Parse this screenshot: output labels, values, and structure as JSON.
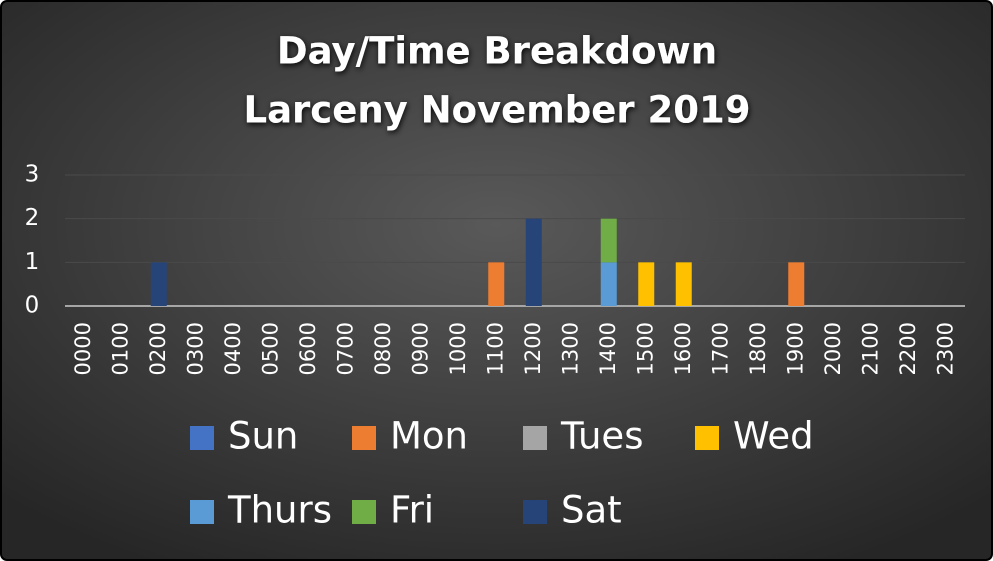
{
  "chart_data": {
    "type": "bar",
    "stacked": true,
    "title": "Day/Time Breakdown",
    "subtitle": "Larceny November 2019",
    "categories": [
      "0000",
      "0100",
      "0200",
      "0300",
      "0400",
      "0500",
      "0600",
      "0700",
      "0800",
      "0900",
      "1000",
      "1100",
      "1200",
      "1300",
      "1400",
      "1500",
      "1600",
      "1700",
      "1800",
      "1900",
      "2000",
      "2100",
      "2200",
      "2300"
    ],
    "series": [
      {
        "name": "Sun",
        "color": "#4472c4",
        "values": [
          0,
          0,
          0,
          0,
          0,
          0,
          0,
          0,
          0,
          0,
          0,
          0,
          0,
          0,
          0,
          0,
          0,
          0,
          0,
          0,
          0,
          0,
          0,
          0
        ]
      },
      {
        "name": "Mon",
        "color": "#ed7d31",
        "values": [
          0,
          0,
          0,
          0,
          0,
          0,
          0,
          0,
          0,
          0,
          0,
          1,
          0,
          0,
          0,
          0,
          0,
          0,
          0,
          1,
          0,
          0,
          0,
          0
        ]
      },
      {
        "name": "Tues",
        "color": "#a5a5a5",
        "values": [
          0,
          0,
          0,
          0,
          0,
          0,
          0,
          0,
          0,
          0,
          0,
          0,
          0,
          0,
          0,
          0,
          0,
          0,
          0,
          0,
          0,
          0,
          0,
          0
        ]
      },
      {
        "name": "Wed",
        "color": "#ffc000",
        "values": [
          0,
          0,
          0,
          0,
          0,
          0,
          0,
          0,
          0,
          0,
          0,
          0,
          0,
          0,
          0,
          1,
          1,
          0,
          0,
          0,
          0,
          0,
          0,
          0
        ]
      },
      {
        "name": "Thurs",
        "color": "#5b9bd5",
        "values": [
          0,
          0,
          0,
          0,
          0,
          0,
          0,
          0,
          0,
          0,
          0,
          0,
          0,
          0,
          1,
          0,
          0,
          0,
          0,
          0,
          0,
          0,
          0,
          0
        ]
      },
      {
        "name": "Fri",
        "color": "#70ad47",
        "values": [
          0,
          0,
          0,
          0,
          0,
          0,
          0,
          0,
          0,
          0,
          0,
          0,
          0,
          0,
          1,
          0,
          0,
          0,
          0,
          0,
          0,
          0,
          0,
          0
        ]
      },
      {
        "name": "Sat",
        "color": "#264478",
        "values": [
          0,
          0,
          1,
          0,
          0,
          0,
          0,
          0,
          0,
          0,
          0,
          0,
          2,
          0,
          0,
          0,
          0,
          0,
          0,
          0,
          0,
          0,
          0,
          0
        ]
      }
    ],
    "ylim": [
      0,
      3
    ],
    "yticks": [
      0,
      1,
      2,
      3
    ],
    "grid": true,
    "legend": "bottom"
  }
}
